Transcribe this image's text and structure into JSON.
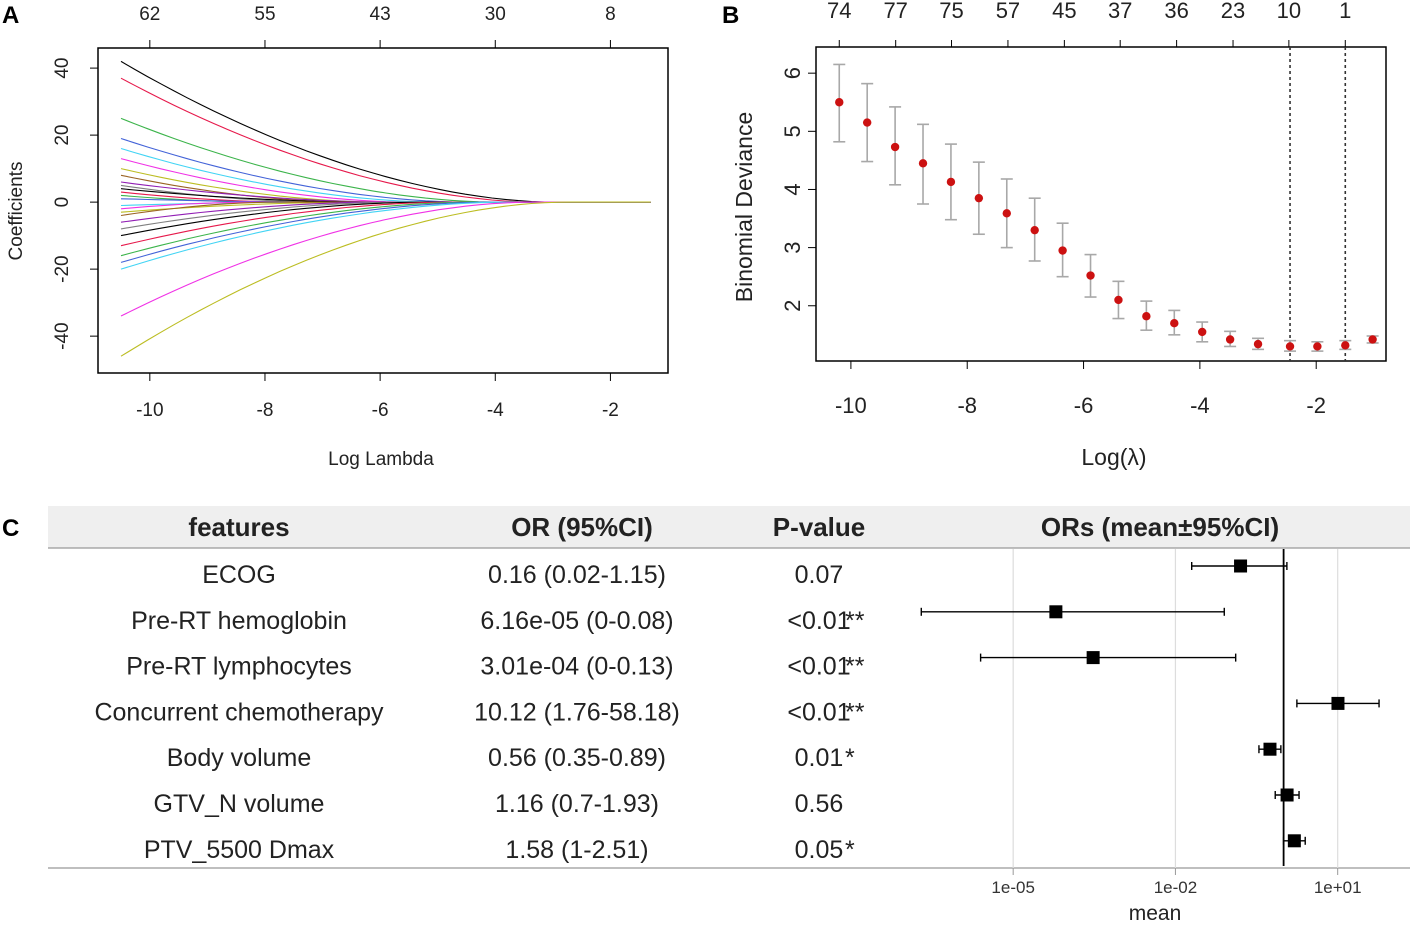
{
  "panel_labels": [
    "A",
    "B",
    "C"
  ],
  "colors": {
    "frame": "#000000",
    "cv_point": "#cc1111",
    "cv_errorbar": "#a8a8a8",
    "table_header_bg": "#efefef",
    "grid": "#dddddd",
    "path_palette": [
      "#000000",
      "#e6194b",
      "#3cb44b",
      "#4363d8",
      "#42d4f4",
      "#f032e6",
      "#bcbd22",
      "#9a6324",
      "#911eb4",
      "#808080"
    ]
  },
  "chart_data": [
    {
      "panel": "A",
      "type": "line",
      "title": "",
      "xlabel": "Log Lambda",
      "ylabel": "Coefficients",
      "xlim": [
        -10.9,
        -1.0
      ],
      "ylim": [
        -51,
        46
      ],
      "x_ticks": [
        -10,
        -8,
        -6,
        -4,
        -2
      ],
      "x_tick_labels": [
        "-10",
        "-8",
        "-6",
        "-4",
        "-2"
      ],
      "y_ticks": [
        -40,
        -20,
        0,
        20,
        40
      ],
      "y_tick_labels": [
        "-40",
        "-20",
        "0",
        "20",
        "40"
      ],
      "top_ticks": [
        -10,
        -8,
        -6,
        -4,
        -2
      ],
      "top_tick_labels": [
        "62",
        "55",
        "43",
        "30",
        "8"
      ],
      "x_start": -10.5,
      "x_end": -1.3,
      "series_note": "coefficient paths, value at log lambda = -10.5, each shrinking toward 0",
      "series": [
        {
          "name": "path1",
          "start": 42,
          "zero_at": -3.0
        },
        {
          "name": "path2",
          "start": 37,
          "zero_at": -3.3
        },
        {
          "name": "path3",
          "start": 25,
          "zero_at": -4.0
        },
        {
          "name": "path4",
          "start": 19,
          "zero_at": -4.5
        },
        {
          "name": "path5",
          "start": 16,
          "zero_at": -5.0
        },
        {
          "name": "path6",
          "start": 13,
          "zero_at": -5.5
        },
        {
          "name": "path7",
          "start": 10,
          "zero_at": -6.0
        },
        {
          "name": "path8",
          "start": 8,
          "zero_at": -6.5
        },
        {
          "name": "path9",
          "start": 6,
          "zero_at": -5.8
        },
        {
          "name": "path10",
          "start": 5,
          "zero_at": -7.0
        },
        {
          "name": "path11",
          "start": 4,
          "zero_at": -6.2
        },
        {
          "name": "path12",
          "start": 3,
          "zero_at": -7.5
        },
        {
          "name": "path13",
          "start": 2,
          "zero_at": -8.0
        },
        {
          "name": "path14",
          "start": 1,
          "zero_at": -6.8
        },
        {
          "name": "path15",
          "start": -1,
          "zero_at": -7.2
        },
        {
          "name": "path16",
          "start": -2,
          "zero_at": -8.2
        },
        {
          "name": "path17",
          "start": -3,
          "zero_at": -6.4
        },
        {
          "name": "path18",
          "start": -4,
          "zero_at": -7.8
        },
        {
          "name": "path19",
          "start": -6,
          "zero_at": -6.0
        },
        {
          "name": "path20",
          "start": -8,
          "zero_at": -5.6
        },
        {
          "name": "path21",
          "start": -10,
          "zero_at": -5.2
        },
        {
          "name": "path22",
          "start": -13,
          "zero_at": -4.8
        },
        {
          "name": "path23",
          "start": -16,
          "zero_at": -4.4
        },
        {
          "name": "path24",
          "start": -18,
          "zero_at": -4.1
        },
        {
          "name": "path25",
          "start": -20,
          "zero_at": -3.8
        },
        {
          "name": "path26",
          "start": -34,
          "zero_at": -3.4
        },
        {
          "name": "path27",
          "start": -46,
          "zero_at": -2.8
        }
      ]
    },
    {
      "panel": "B",
      "type": "scatter",
      "title": "",
      "xlabel": "Log(λ)",
      "ylabel": "Binomial Deviance",
      "xlim": [
        -10.6,
        -0.8
      ],
      "ylim": [
        1.05,
        6.45
      ],
      "x_ticks": [
        -10,
        -8,
        -6,
        -4,
        -2
      ],
      "x_tick_labels": [
        "-10",
        "-8",
        "-6",
        "-4",
        "-2"
      ],
      "y_ticks": [
        2,
        3,
        4,
        5,
        6
      ],
      "y_tick_labels": [
        "2",
        "3",
        "4",
        "5",
        "6"
      ],
      "top_tick_labels": [
        "74",
        "77",
        "75",
        "57",
        "45",
        "37",
        "36",
        "23",
        "10",
        "1"
      ],
      "top_tick_x": [
        -10.2,
        -9.23,
        -8.27,
        -7.3,
        -6.33,
        -5.37,
        -4.4,
        -3.43,
        -2.47,
        -1.5
      ],
      "vlines": [
        -2.45,
        -1.5
      ],
      "x": [
        -10.2,
        -9.72,
        -9.24,
        -8.76,
        -8.28,
        -7.8,
        -7.32,
        -6.84,
        -6.36,
        -5.88,
        -5.4,
        -4.92,
        -4.44,
        -3.96,
        -3.48,
        -3.0,
        -2.45,
        -1.98,
        -1.5,
        -1.03
      ],
      "y": [
        5.5,
        5.15,
        4.73,
        4.45,
        4.13,
        3.85,
        3.59,
        3.3,
        2.95,
        2.52,
        2.1,
        1.82,
        1.7,
        1.55,
        1.42,
        1.34,
        1.3,
        1.3,
        1.32,
        1.42
      ],
      "lower": [
        4.82,
        4.48,
        4.08,
        3.75,
        3.48,
        3.23,
        3.0,
        2.77,
        2.5,
        2.15,
        1.78,
        1.58,
        1.5,
        1.38,
        1.3,
        1.25,
        1.22,
        1.22,
        1.25,
        1.36
      ],
      "upper": [
        6.15,
        5.82,
        5.42,
        5.12,
        4.78,
        4.47,
        4.18,
        3.85,
        3.42,
        2.88,
        2.42,
        2.08,
        1.92,
        1.72,
        1.56,
        1.44,
        1.4,
        1.38,
        1.4,
        1.48
      ]
    },
    {
      "panel": "C",
      "type": "table",
      "title": "",
      "columns": [
        "features",
        "OR (95%CI)",
        "P-value",
        "ORs (mean±95%CI)"
      ],
      "rows": [
        {
          "feature": "ECOG",
          "or_ci": "0.16 (0.02-1.15)",
          "p": "0.07",
          "stars": "",
          "mean": 0.16,
          "lo": 0.02,
          "hi": 1.15
        },
        {
          "feature": "Pre-RT hemoglobin",
          "or_ci": "6.16e-05 (0-0.08)",
          "p": "<0.01",
          "stars": "**",
          "mean": 6.16e-05,
          "lo": 2e-07,
          "hi": 0.08
        },
        {
          "feature": "Pre-RT lymphocytes",
          "or_ci": "3.01e-04 (0-0.13)",
          "p": "<0.01",
          "stars": "**",
          "mean": 0.000301,
          "lo": 2.5e-06,
          "hi": 0.13
        },
        {
          "feature": "Concurrent chemotherapy",
          "or_ci": "10.12 (1.76-58.18)",
          "p": "<0.01",
          "stars": "**",
          "mean": 10.12,
          "lo": 1.76,
          "hi": 58.18
        },
        {
          "feature": "Body volume",
          "or_ci": "0.56 (0.35-0.89)",
          "p": "0.01",
          "stars": "*",
          "mean": 0.56,
          "lo": 0.35,
          "hi": 0.89
        },
        {
          "feature": "GTV_N volume",
          "or_ci": "1.16 (0.7-1.93)",
          "p": "0.56",
          "stars": "",
          "mean": 1.16,
          "lo": 0.7,
          "hi": 1.93
        },
        {
          "feature": "PTV_5500 Dmax",
          "or_ci": "1.58 (1-2.51)",
          "p": "0.05",
          "stars": "*",
          "mean": 1.58,
          "lo": 1.0,
          "hi": 2.51
        }
      ],
      "forest_axis": {
        "scale": "log10",
        "xlim_log10": [
          -7.0,
          2.3
        ],
        "ticks_log10": [
          -5,
          -2,
          1
        ],
        "tick_labels": [
          "1e-05",
          "1e-02",
          "1e+01"
        ],
        "xlabel": "mean",
        "reference_line": 1.0
      }
    }
  ]
}
